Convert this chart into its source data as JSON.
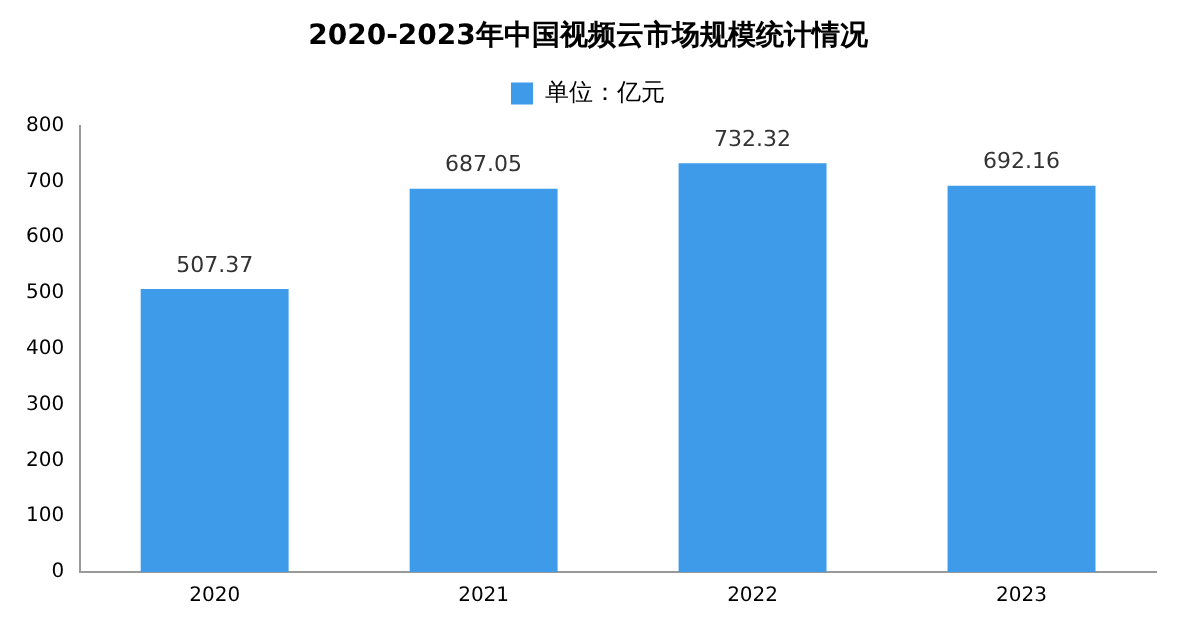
{
  "chart_data": {
    "type": "bar",
    "title": "2020-2023年中国视频云市场规模统计情况",
    "categories": [
      "2020",
      "2021",
      "2022",
      "2023"
    ],
    "series": [
      {
        "name": "单位：亿元",
        "color": "#3d9be9",
        "values": [
          507.37,
          687.05,
          732.32,
          692.16
        ]
      }
    ],
    "ylim": [
      0,
      800
    ],
    "yticks": [
      0,
      100,
      200,
      300,
      400,
      500,
      600,
      700,
      800
    ],
    "grid": false,
    "legend": "top",
    "data_labels": true
  }
}
